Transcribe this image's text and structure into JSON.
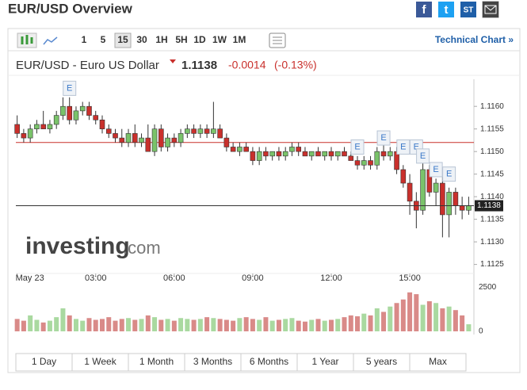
{
  "header": {
    "title": "EUR/USD Overview",
    "share": [
      "f",
      "t",
      "ST",
      "i"
    ]
  },
  "toolbar": {
    "intervals": [
      "1",
      "5",
      "15",
      "30",
      "1H",
      "5H",
      "1D",
      "1W",
      "1M"
    ],
    "active_interval_index": 2,
    "link": "Technical Chart »"
  },
  "quote": {
    "name": "EUR/USD - Euro US Dollar",
    "last_price": 1.1138,
    "change": -0.0014,
    "change_pct": {
      "value": -0.13,
      "label": "(-0.13%)"
    }
  },
  "watermark": {
    "brand": "investing",
    "suffix": ".com"
  },
  "ranges": [
    "1 Day",
    "1 Week",
    "1 Month",
    "3 Months",
    "6 Months",
    "1 Year",
    "5 years",
    "Max"
  ],
  "chart_data": {
    "type": "candlestick",
    "up_color": "#7ac36a",
    "down_color": "#c9302c",
    "prev_close": 1.1152,
    "xlim": [
      -0.05,
      17.45
    ],
    "xticks": [
      {
        "value": 0,
        "label": "May 23"
      },
      {
        "value": 3,
        "label": "03:00"
      },
      {
        "value": 6,
        "label": "06:00"
      },
      {
        "value": 9,
        "label": "09:00"
      },
      {
        "value": 12,
        "label": "12:00"
      },
      {
        "value": 15,
        "label": "15:00"
      }
    ],
    "ylim": [
      1.1123,
      1.1166
    ],
    "yticks": [
      1.1125,
      {
        "value": 1.113,
        "label": "1.1130"
      },
      1.1135,
      {
        "value": 1.114,
        "label": "1.1140"
      },
      1.1145,
      {
        "value": 1.115,
        "label": "1.1150"
      },
      1.1155,
      {
        "value": 1.116,
        "label": "1.1160"
      }
    ],
    "volume_ylim": [
      0,
      3000
    ],
    "volume_ticks": [
      0,
      2500
    ],
    "x": [
      0,
      0.25,
      0.5,
      0.75,
      1,
      1.25,
      1.5,
      1.75,
      2,
      2.25,
      2.5,
      2.75,
      3,
      3.25,
      3.5,
      3.75,
      4,
      4.25,
      4.5,
      4.75,
      5,
      5.25,
      5.5,
      5.75,
      6,
      6.25,
      6.5,
      6.75,
      7,
      7.25,
      7.5,
      7.75,
      8,
      8.25,
      8.5,
      8.75,
      9,
      9.25,
      9.5,
      9.75,
      10,
      10.25,
      10.5,
      10.75,
      11,
      11.25,
      11.5,
      11.75,
      12,
      12.25,
      12.5,
      12.75,
      13,
      13.25,
      13.5,
      13.75,
      14,
      14.25,
      14.5,
      14.75,
      15,
      15.25,
      15.5,
      15.75,
      16,
      16.25,
      16.5,
      16.75,
      17,
      17.25
    ],
    "open": [
      1.1156,
      1.1154,
      1.1153,
      1.1155,
      1.1156,
      1.1155,
      1.1156,
      1.1158,
      1.116,
      1.1157,
      1.1159,
      1.116,
      1.1158,
      1.1157,
      1.1155,
      1.1154,
      1.1153,
      1.1152,
      1.1154,
      1.1152,
      1.1153,
      1.115,
      1.1155,
      1.1151,
      1.1153,
      1.1152,
      1.1154,
      1.1155,
      1.1154,
      1.1155,
      1.1154,
      1.1155,
      1.1153,
      1.1151,
      1.115,
      1.1151,
      1.115,
      1.1148,
      1.115,
      1.1149,
      1.115,
      1.1149,
      1.115,
      1.1151,
      1.115,
      1.1149,
      1.115,
      1.1149,
      1.115,
      1.1149,
      1.115,
      1.1149,
      1.1148,
      1.1147,
      1.1148,
      1.1147,
      1.115,
      1.1149,
      1.115,
      1.1146,
      1.1143,
      1.1139,
      1.1137,
      1.1146,
      1.1141,
      1.1143,
      1.1136,
      1.1141,
      1.1138,
      1.1137
    ],
    "high": [
      1.1158,
      1.1155,
      1.1156,
      1.1157,
      1.1159,
      1.1157,
      1.1159,
      1.1162,
      1.1162,
      1.116,
      1.1161,
      1.1161,
      1.1159,
      1.1158,
      1.1156,
      1.1155,
      1.1155,
      1.1155,
      1.1156,
      1.1154,
      1.1156,
      1.1156,
      1.1156,
      1.1154,
      1.1154,
      1.1155,
      1.1156,
      1.1156,
      1.1156,
      1.1156,
      1.1161,
      1.1156,
      1.1154,
      1.1152,
      1.1152,
      1.1152,
      1.1151,
      1.1151,
      1.1151,
      1.115,
      1.1151,
      1.1151,
      1.1152,
      1.1152,
      1.1151,
      1.115,
      1.1151,
      1.115,
      1.1151,
      1.115,
      1.1151,
      1.115,
      1.1149,
      1.1149,
      1.1149,
      1.1151,
      1.1152,
      1.1151,
      1.1151,
      1.1147,
      1.1145,
      1.1141,
      1.115,
      1.1147,
      1.1144,
      1.1145,
      1.1142,
      1.1142,
      1.114,
      1.114
    ],
    "low": [
      1.1153,
      1.1152,
      1.1152,
      1.1154,
      1.1155,
      1.1154,
      1.1155,
      1.1157,
      1.1156,
      1.1156,
      1.1158,
      1.1157,
      1.1156,
      1.1154,
      1.1153,
      1.1152,
      1.1151,
      1.1151,
      1.1151,
      1.1151,
      1.115,
      1.1149,
      1.115,
      1.115,
      1.1151,
      1.1151,
      1.1153,
      1.1153,
      1.1153,
      1.1153,
      1.1153,
      1.1153,
      1.115,
      1.115,
      1.1149,
      1.115,
      1.1147,
      1.1147,
      1.1148,
      1.1148,
      1.1148,
      1.1148,
      1.1149,
      1.1149,
      1.1149,
      1.1148,
      1.1149,
      1.1148,
      1.1148,
      1.1148,
      1.1149,
      1.1148,
      1.1146,
      1.1146,
      1.1146,
      1.1146,
      1.1148,
      1.1148,
      1.1145,
      1.1142,
      1.1136,
      1.1133,
      1.1136,
      1.114,
      1.1138,
      1.1131,
      1.1131,
      1.1136,
      1.1135,
      1.1136
    ],
    "close": [
      1.1154,
      1.1153,
      1.1155,
      1.1156,
      1.1155,
      1.1156,
      1.1158,
      1.116,
      1.1157,
      1.1159,
      1.116,
      1.1158,
      1.1157,
      1.1155,
      1.1154,
      1.1153,
      1.1152,
      1.1154,
      1.1152,
      1.1153,
      1.115,
      1.1155,
      1.1151,
      1.1153,
      1.1152,
      1.1154,
      1.1155,
      1.1154,
      1.1155,
      1.1154,
      1.1155,
      1.1153,
      1.1151,
      1.115,
      1.1151,
      1.115,
      1.1148,
      1.115,
      1.1149,
      1.115,
      1.1149,
      1.115,
      1.1151,
      1.115,
      1.1149,
      1.115,
      1.1149,
      1.115,
      1.1149,
      1.115,
      1.1149,
      1.1148,
      1.1147,
      1.1148,
      1.1147,
      1.115,
      1.1149,
      1.115,
      1.1146,
      1.1143,
      1.1139,
      1.1137,
      1.1146,
      1.1141,
      1.1143,
      1.1136,
      1.1141,
      1.1138,
      1.1137,
      1.1138
    ],
    "volume": [
      700,
      600,
      900,
      650,
      500,
      600,
      800,
      1300,
      900,
      700,
      600,
      750,
      650,
      700,
      800,
      600,
      700,
      750,
      650,
      700,
      900,
      800,
      650,
      700,
      600,
      750,
      700,
      650,
      700,
      800,
      750,
      700,
      650,
      600,
      750,
      800,
      700,
      650,
      800,
      600,
      650,
      700,
      750,
      600,
      550,
      650,
      700,
      600,
      650,
      700,
      800,
      900,
      850,
      1000,
      900,
      1300,
      1100,
      1400,
      1600,
      1800,
      2200,
      2100,
      1500,
      1700,
      1600,
      1300,
      1400,
      1200,
      900,
      400
    ],
    "events": [
      {
        "x": 2,
        "y": 1.1164,
        "label": "E"
      },
      {
        "x": 13,
        "y": 1.1151,
        "label": "E"
      },
      {
        "x": 14,
        "y": 1.1153,
        "label": "E"
      },
      {
        "x": 14.75,
        "y": 1.1151,
        "label": "E"
      },
      {
        "x": 15.25,
        "y": 1.1151,
        "label": "E"
      },
      {
        "x": 15.5,
        "y": 1.1149,
        "label": "E"
      },
      {
        "x": 16,
        "y": 1.1146,
        "label": "E"
      },
      {
        "x": 16.5,
        "y": 1.1145,
        "label": "E"
      }
    ]
  }
}
